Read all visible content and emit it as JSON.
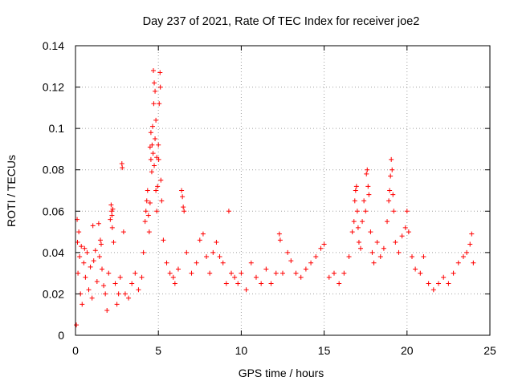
{
  "chart_data": {
    "type": "scatter",
    "title": "Day 237 of 2021, Rate Of TEC Index for receiver joe2",
    "xlabel": "GPS time / hours",
    "ylabel": "ROTI / TECUs",
    "xlim": [
      0,
      25
    ],
    "ylim": [
      0,
      0.14
    ],
    "x_ticks": [
      0,
      5,
      10,
      15,
      20,
      25
    ],
    "y_ticks": [
      0,
      0.02,
      0.04,
      0.06,
      0.08,
      0.1,
      0.12,
      0.14
    ],
    "x_tick_labels": [
      "0",
      "5",
      "10",
      "15",
      "20",
      "25"
    ],
    "y_tick_labels": [
      "0",
      "0.02",
      "0.04",
      "0.06",
      "0.08",
      "0.1",
      "0.12",
      "0.14"
    ],
    "grid": true,
    "marker": "+",
    "series": [
      {
        "color": "#ff0000",
        "points": [
          [
            0.05,
            0.005
          ],
          [
            0.1,
            0.056
          ],
          [
            0.12,
            0.045
          ],
          [
            0.15,
            0.03
          ],
          [
            0.2,
            0.05
          ],
          [
            0.25,
            0.038
          ],
          [
            0.3,
            0.02
          ],
          [
            0.35,
            0.043
          ],
          [
            0.4,
            0.015
          ],
          [
            0.5,
            0.035
          ],
          [
            0.55,
            0.042
          ],
          [
            0.6,
            0.028
          ],
          [
            0.7,
            0.04
          ],
          [
            0.8,
            0.022
          ],
          [
            0.9,
            0.033
          ],
          [
            1.0,
            0.018
          ],
          [
            1.05,
            0.053
          ],
          [
            1.1,
            0.036
          ],
          [
            1.2,
            0.041
          ],
          [
            1.3,
            0.026
          ],
          [
            1.4,
            0.054
          ],
          [
            1.45,
            0.038
          ],
          [
            1.5,
            0.046
          ],
          [
            1.55,
            0.044
          ],
          [
            1.6,
            0.032
          ],
          [
            1.7,
            0.024
          ],
          [
            1.8,
            0.02
          ],
          [
            1.9,
            0.012
          ],
          [
            2.0,
            0.03
          ],
          [
            2.1,
            0.056
          ],
          [
            2.15,
            0.063
          ],
          [
            2.18,
            0.06
          ],
          [
            2.2,
            0.058
          ],
          [
            2.22,
            0.052
          ],
          [
            2.25,
            0.061
          ],
          [
            2.3,
            0.045
          ],
          [
            2.4,
            0.025
          ],
          [
            2.5,
            0.015
          ],
          [
            2.6,
            0.02
          ],
          [
            2.7,
            0.028
          ],
          [
            2.8,
            0.083
          ],
          [
            2.82,
            0.081
          ],
          [
            2.9,
            0.05
          ],
          [
            3.0,
            0.02
          ],
          [
            3.2,
            0.018
          ],
          [
            3.4,
            0.025
          ],
          [
            3.6,
            0.03
          ],
          [
            3.8,
            0.022
          ],
          [
            4.0,
            0.028
          ],
          [
            4.1,
            0.04
          ],
          [
            4.2,
            0.055
          ],
          [
            4.25,
            0.06
          ],
          [
            4.3,
            0.065
          ],
          [
            4.35,
            0.07
          ],
          [
            4.4,
            0.058
          ],
          [
            4.45,
            0.05
          ],
          [
            4.5,
            0.064
          ],
          [
            4.5,
            0.091
          ],
          [
            4.55,
            0.098
          ],
          [
            4.55,
            0.085
          ],
          [
            4.6,
            0.079
          ],
          [
            4.62,
            0.092
          ],
          [
            4.65,
            0.101
          ],
          [
            4.68,
            0.088
          ],
          [
            4.7,
            0.128
          ],
          [
            4.72,
            0.112
          ],
          [
            4.75,
            0.122
          ],
          [
            4.75,
            0.082
          ],
          [
            4.8,
            0.118
          ],
          [
            4.8,
            0.095
          ],
          [
            4.85,
            0.104
          ],
          [
            4.85,
            0.07
          ],
          [
            4.9,
            0.086
          ],
          [
            4.9,
            0.06
          ],
          [
            4.95,
            0.072
          ],
          [
            5.0,
            0.092
          ],
          [
            5.02,
            0.085
          ],
          [
            5.05,
            0.112
          ],
          [
            5.1,
            0.127
          ],
          [
            5.12,
            0.12
          ],
          [
            5.15,
            0.075
          ],
          [
            5.2,
            0.065
          ],
          [
            5.3,
            0.046
          ],
          [
            5.5,
            0.035
          ],
          [
            5.7,
            0.03
          ],
          [
            5.9,
            0.028
          ],
          [
            6.0,
            0.025
          ],
          [
            6.2,
            0.032
          ],
          [
            6.4,
            0.07
          ],
          [
            6.45,
            0.067
          ],
          [
            6.5,
            0.062
          ],
          [
            6.55,
            0.06
          ],
          [
            6.7,
            0.04
          ],
          [
            7.0,
            0.03
          ],
          [
            7.3,
            0.035
          ],
          [
            7.5,
            0.046
          ],
          [
            7.7,
            0.049
          ],
          [
            7.9,
            0.038
          ],
          [
            8.1,
            0.03
          ],
          [
            8.3,
            0.04
          ],
          [
            8.5,
            0.045
          ],
          [
            8.7,
            0.038
          ],
          [
            8.9,
            0.035
          ],
          [
            9.1,
            0.025
          ],
          [
            9.25,
            0.06
          ],
          [
            9.4,
            0.03
          ],
          [
            9.6,
            0.028
          ],
          [
            9.8,
            0.025
          ],
          [
            10.0,
            0.03
          ],
          [
            10.3,
            0.022
          ],
          [
            10.6,
            0.035
          ],
          [
            10.9,
            0.028
          ],
          [
            11.2,
            0.025
          ],
          [
            11.5,
            0.032
          ],
          [
            11.8,
            0.025
          ],
          [
            12.1,
            0.03
          ],
          [
            12.3,
            0.049
          ],
          [
            12.35,
            0.046
          ],
          [
            12.5,
            0.03
          ],
          [
            12.8,
            0.04
          ],
          [
            13.0,
            0.036
          ],
          [
            13.3,
            0.03
          ],
          [
            13.6,
            0.028
          ],
          [
            13.9,
            0.032
          ],
          [
            14.2,
            0.035
          ],
          [
            14.5,
            0.038
          ],
          [
            14.8,
            0.042
          ],
          [
            15.0,
            0.044
          ],
          [
            15.3,
            0.028
          ],
          [
            15.6,
            0.03
          ],
          [
            15.9,
            0.025
          ],
          [
            16.2,
            0.03
          ],
          [
            16.5,
            0.038
          ],
          [
            16.7,
            0.05
          ],
          [
            16.8,
            0.055
          ],
          [
            16.85,
            0.065
          ],
          [
            16.9,
            0.07
          ],
          [
            16.95,
            0.072
          ],
          [
            17.0,
            0.06
          ],
          [
            17.05,
            0.052
          ],
          [
            17.1,
            0.045
          ],
          [
            17.2,
            0.042
          ],
          [
            17.3,
            0.055
          ],
          [
            17.4,
            0.065
          ],
          [
            17.5,
            0.06
          ],
          [
            17.55,
            0.078
          ],
          [
            17.6,
            0.08
          ],
          [
            17.65,
            0.072
          ],
          [
            17.7,
            0.068
          ],
          [
            17.8,
            0.05
          ],
          [
            17.9,
            0.04
          ],
          [
            18.0,
            0.035
          ],
          [
            18.2,
            0.045
          ],
          [
            18.4,
            0.038
          ],
          [
            18.6,
            0.042
          ],
          [
            18.8,
            0.055
          ],
          [
            18.9,
            0.065
          ],
          [
            18.95,
            0.07
          ],
          [
            19.0,
            0.077
          ],
          [
            19.05,
            0.085
          ],
          [
            19.1,
            0.08
          ],
          [
            19.15,
            0.068
          ],
          [
            19.2,
            0.06
          ],
          [
            19.3,
            0.045
          ],
          [
            19.5,
            0.04
          ],
          [
            19.7,
            0.048
          ],
          [
            19.9,
            0.052
          ],
          [
            20.0,
            0.06
          ],
          [
            20.1,
            0.05
          ],
          [
            20.3,
            0.038
          ],
          [
            20.5,
            0.032
          ],
          [
            20.8,
            0.03
          ],
          [
            21.0,
            0.038
          ],
          [
            21.3,
            0.025
          ],
          [
            21.6,
            0.022
          ],
          [
            21.9,
            0.025
          ],
          [
            22.2,
            0.028
          ],
          [
            22.5,
            0.025
          ],
          [
            22.8,
            0.03
          ],
          [
            23.1,
            0.035
          ],
          [
            23.4,
            0.038
          ],
          [
            23.6,
            0.04
          ],
          [
            23.8,
            0.044
          ],
          [
            23.9,
            0.049
          ],
          [
            24.0,
            0.035
          ]
        ]
      }
    ]
  }
}
